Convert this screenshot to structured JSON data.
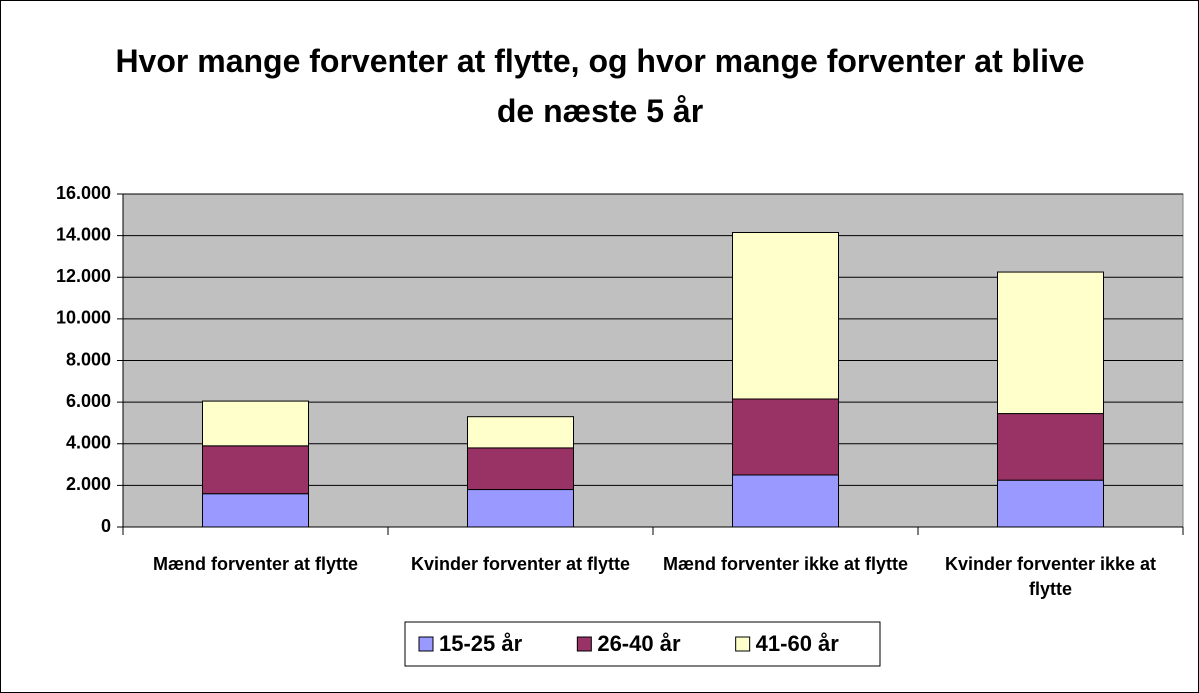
{
  "chart_data": {
    "type": "stacked_bar",
    "title": "Hvor mange forventer at flytte, og hvor mange forventer at blive de næste 5 år",
    "categories": [
      "Mænd forventer at flytte",
      "Kvinder forventer at flytte",
      "Mænd forventer ikke at flytte",
      "Kvinder forventer ikke at flytte"
    ],
    "series": [
      {
        "name": "15-25 år",
        "color": "#9999ff",
        "values": [
          1600,
          1800,
          2500,
          2250
        ]
      },
      {
        "name": "26-40 år",
        "color": "#993366",
        "values": [
          2300,
          2000,
          3650,
          3200
        ]
      },
      {
        "name": "41-60 år",
        "color": "#ffffcc",
        "values": [
          2150,
          1500,
          8000,
          6800
        ]
      }
    ],
    "ylim": [
      0,
      16000
    ],
    "yticks": [
      0,
      {
        "value": 2000,
        "label": "2.000"
      },
      {
        "value": 4000,
        "label": "4.000"
      },
      {
        "value": 6000,
        "label": "6.000"
      },
      {
        "value": 8000,
        "label": "8.000"
      },
      {
        "value": 10000,
        "label": "10.000"
      },
      {
        "value": 12000,
        "label": "12.000"
      },
      {
        "value": 14000,
        "label": "14.000"
      },
      {
        "value": 16000,
        "label": "16.000"
      }
    ],
    "grid": true,
    "legend": "bottom"
  }
}
